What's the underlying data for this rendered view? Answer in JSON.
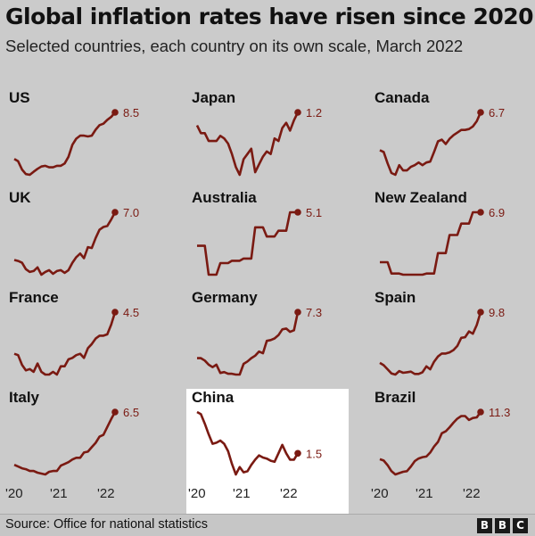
{
  "title": "Global inflation rates have risen since 2020",
  "subtitle": "Selected countries, each country on its own scale, March 2022",
  "source": "Source: Office for national statistics",
  "logo_letters": [
    "B",
    "B",
    "C"
  ],
  "colors": {
    "background": "#cbcbcb",
    "line": "#7a1a12",
    "highlight_panel": "#ffffff"
  },
  "chart_data": {
    "type": "line",
    "x_ticks": [
      "'20",
      "'21",
      "'22"
    ],
    "highlight": "China",
    "series": [
      {
        "name": "US",
        "final_label": "8.5",
        "values": [
          2.3,
          2.0,
          0.9,
          0.3,
          0.2,
          0.6,
          1.0,
          1.3,
          1.4,
          1.2,
          1.2,
          1.4,
          1.4,
          1.7,
          2.6,
          4.2,
          5.0,
          5.4,
          5.4,
          5.3,
          5.4,
          6.2,
          6.8,
          7.0,
          7.5,
          7.9,
          8.5
        ]
      },
      {
        "name": "Japan",
        "final_label": "1.2",
        "values": [
          0.7,
          0.4,
          0.4,
          0.1,
          0.1,
          0.1,
          0.3,
          0.2,
          0.0,
          -0.4,
          -0.9,
          -1.2,
          -0.6,
          -0.4,
          -0.2,
          -1.1,
          -0.8,
          -0.5,
          -0.3,
          -0.4,
          0.2,
          0.1,
          0.6,
          0.8,
          0.5,
          0.9,
          1.2
        ]
      },
      {
        "name": "Canada",
        "final_label": "6.7",
        "values": [
          2.4,
          2.2,
          0.9,
          -0.2,
          -0.4,
          0.7,
          0.1,
          0.1,
          0.5,
          0.7,
          1.0,
          0.7,
          1.0,
          1.1,
          2.2,
          3.4,
          3.6,
          3.1,
          3.7,
          4.1,
          4.4,
          4.7,
          4.7,
          4.8,
          5.1,
          5.7,
          6.7
        ]
      },
      {
        "name": "UK",
        "final_label": "7.0",
        "values": [
          1.8,
          1.7,
          1.5,
          0.8,
          0.5,
          0.6,
          1.0,
          0.2,
          0.5,
          0.7,
          0.3,
          0.6,
          0.7,
          0.4,
          0.7,
          1.5,
          2.1,
          2.5,
          2.0,
          3.2,
          3.1,
          4.2,
          5.1,
          5.4,
          5.5,
          6.2,
          7.0
        ]
      },
      {
        "name": "Australia",
        "final_label": "5.1",
        "values": [
          2.2,
          2.2,
          2.2,
          -0.3,
          -0.3,
          -0.3,
          0.7,
          0.7,
          0.7,
          0.9,
          0.9,
          0.9,
          1.1,
          1.1,
          1.1,
          3.8,
          3.8,
          3.8,
          3.0,
          3.0,
          3.0,
          3.5,
          3.5,
          3.5,
          5.1,
          5.1,
          5.1
        ]
      },
      {
        "name": "New Zealand",
        "final_label": "6.9",
        "values": [
          2.5,
          2.5,
          2.5,
          1.5,
          1.5,
          1.5,
          1.4,
          1.4,
          1.4,
          1.4,
          1.4,
          1.4,
          1.5,
          1.5,
          1.5,
          3.3,
          3.3,
          3.3,
          4.9,
          4.9,
          4.9,
          5.9,
          5.9,
          5.9,
          6.9,
          6.9,
          6.9
        ]
      },
      {
        "name": "France",
        "final_label": "4.5",
        "values": [
          1.5,
          1.4,
          0.7,
          0.3,
          0.4,
          0.2,
          0.8,
          0.2,
          0.0,
          0.0,
          0.2,
          0.0,
          0.6,
          0.6,
          1.1,
          1.2,
          1.4,
          1.5,
          1.2,
          1.9,
          2.2,
          2.6,
          2.8,
          2.8,
          2.9,
          3.6,
          4.5
        ]
      },
      {
        "name": "Germany",
        "final_label": "7.3",
        "values": [
          1.7,
          1.7,
          1.4,
          0.9,
          0.6,
          0.9,
          -0.1,
          0.0,
          -0.2,
          -0.2,
          -0.3,
          -0.3,
          1.0,
          1.3,
          1.7,
          2.0,
          2.5,
          2.3,
          3.8,
          3.9,
          4.1,
          4.5,
          5.2,
          5.3,
          4.9,
          5.1,
          7.3
        ]
      },
      {
        "name": "Spain",
        "final_label": "9.8",
        "values": [
          1.1,
          0.7,
          0.0,
          -0.7,
          -0.9,
          -0.3,
          -0.6,
          -0.5,
          -0.4,
          -0.8,
          -0.8,
          -0.5,
          0.5,
          0.0,
          1.3,
          2.2,
          2.7,
          2.7,
          2.9,
          3.3,
          4.0,
          5.4,
          5.5,
          6.5,
          6.1,
          7.6,
          9.8
        ]
      },
      {
        "name": "Italy",
        "final_label": "6.5",
        "values": [
          0.5,
          0.3,
          0.1,
          0.0,
          -0.2,
          -0.2,
          -0.4,
          -0.5,
          -0.6,
          -0.3,
          -0.2,
          -0.2,
          0.4,
          0.6,
          0.8,
          1.1,
          1.3,
          1.3,
          1.9,
          2.0,
          2.5,
          3.0,
          3.7,
          3.9,
          4.8,
          5.7,
          6.5
        ]
      },
      {
        "name": "China",
        "final_label": "1.5",
        "values": [
          5.4,
          5.2,
          4.3,
          3.3,
          2.4,
          2.5,
          2.7,
          2.4,
          1.7,
          0.5,
          -0.5,
          0.2,
          -0.3,
          -0.2,
          0.4,
          0.9,
          1.3,
          1.1,
          1.0,
          0.8,
          0.7,
          1.5,
          2.3,
          1.5,
          0.9,
          0.9,
          1.5
        ]
      },
      {
        "name": "Brazil",
        "final_label": "11.3",
        "values": [
          4.2,
          4.0,
          3.3,
          2.4,
          1.9,
          2.1,
          2.3,
          2.4,
          3.1,
          3.9,
          4.3,
          4.5,
          4.6,
          5.2,
          6.1,
          6.8,
          8.1,
          8.4,
          9.0,
          9.7,
          10.3,
          10.7,
          10.7,
          10.1,
          10.4,
          10.5,
          11.3
        ]
      }
    ]
  }
}
